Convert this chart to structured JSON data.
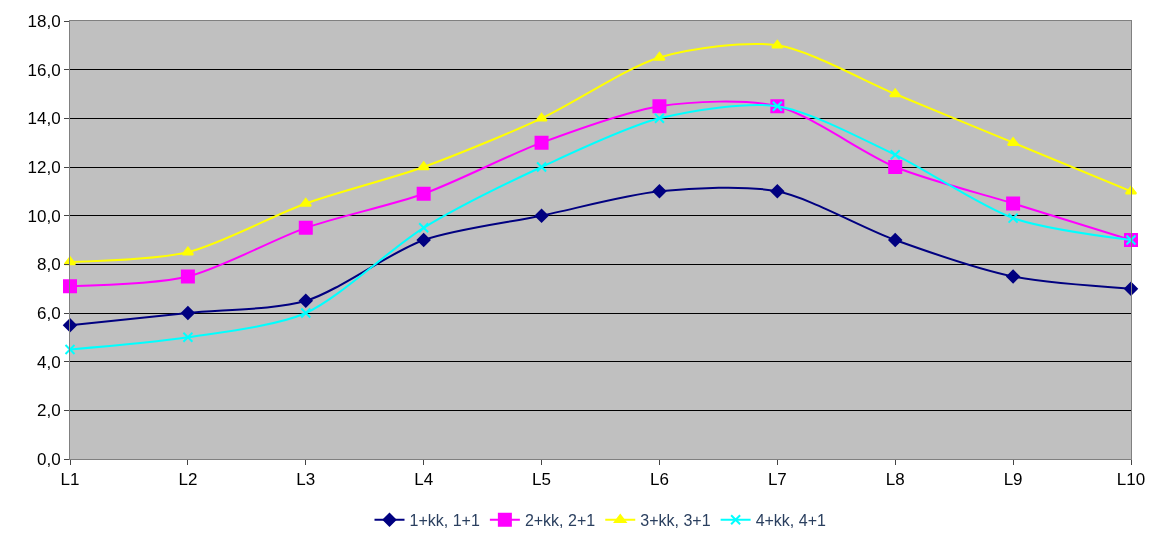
{
  "chart_data": {
    "type": "line",
    "categories": [
      "L1",
      "L2",
      "L3",
      "L4",
      "L5",
      "L6",
      "L7",
      "L8",
      "L9",
      "L10"
    ],
    "series": [
      {
        "name": "1+kk, 1+1",
        "color": "#000080",
        "marker": "diamond",
        "values": [
          5.5,
          6.0,
          6.5,
          9.0,
          10.0,
          11.0,
          11.0,
          9.0,
          7.5,
          7.0
        ]
      },
      {
        "name": "2+kk, 2+1",
        "color": "#ff00ff",
        "marker": "square",
        "values": [
          7.1,
          7.5,
          9.5,
          10.9,
          13.0,
          14.5,
          14.5,
          12.0,
          10.5,
          9.0
        ]
      },
      {
        "name": "3+kk, 3+1",
        "color": "#ffff00",
        "marker": "triangle",
        "values": [
          8.1,
          8.5,
          10.5,
          12.0,
          14.0,
          16.5,
          17.0,
          15.0,
          13.0,
          11.0
        ]
      },
      {
        "name": "4+kk, 4+1",
        "color": "#00ffff",
        "marker": "cross",
        "values": [
          4.5,
          5.0,
          6.0,
          9.5,
          12.0,
          14.0,
          14.5,
          12.5,
          9.9,
          9.0
        ]
      }
    ],
    "ylim": [
      0,
      18
    ],
    "yticks": [
      {
        "value": 0,
        "label": "0,0"
      },
      {
        "value": 2,
        "label": "2,0"
      },
      {
        "value": 4,
        "label": "4,0"
      },
      {
        "value": 6,
        "label": "6,0"
      },
      {
        "value": 8,
        "label": "8,0"
      },
      {
        "value": 10,
        "label": "10,0"
      },
      {
        "value": 12,
        "label": "12,0"
      },
      {
        "value": 14,
        "label": "14,0"
      },
      {
        "value": 16,
        "label": "16,0"
      },
      {
        "value": 18,
        "label": "18,0"
      }
    ],
    "grid": "y",
    "legend": "bottom",
    "line_style": "solid"
  }
}
